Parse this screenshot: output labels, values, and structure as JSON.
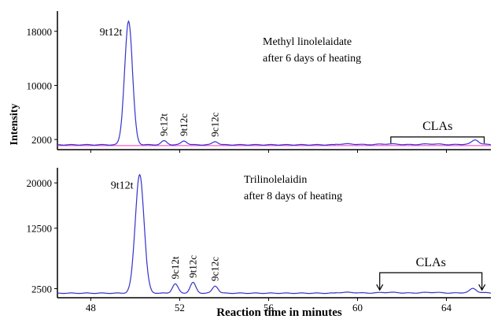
{
  "chart_data": {
    "type": "line",
    "xlabel": "Reaction time in minutes",
    "ylabel": "Intensity",
    "xlim": [
      46.5,
      66
    ],
    "x_ticks": [
      48,
      52,
      56,
      60,
      64
    ],
    "colors": {
      "trace": "#3333cc",
      "baseline": "#ff33cc",
      "axis": "#000000"
    },
    "panels": [
      {
        "title": "Methyl linolelaidate",
        "subtitle": "after 6 days of heating",
        "ylim": [
          500,
          21000
        ],
        "y_ticks": [
          2000,
          10000,
          18000
        ],
        "peaks": [
          {
            "label": "9t12t",
            "x": 49.7,
            "y": 19500
          },
          {
            "label": "9c12t",
            "x": 51.3,
            "y": 1800
          },
          {
            "label": "9t12c",
            "x": 52.2,
            "y": 1800
          },
          {
            "label": "9c12c",
            "x": 53.6,
            "y": 1700
          }
        ],
        "cla_bracket": {
          "label": "CLAs",
          "x_start": 61.5,
          "x_end": 65.7,
          "style": "bracket"
        }
      },
      {
        "title": "Trilinolelaidin",
        "subtitle": "after 8 days of heating",
        "ylim": [
          1000,
          22500
        ],
        "y_ticks": [
          2500,
          12500,
          20000
        ],
        "peaks": [
          {
            "label": "9t12t",
            "x": 50.2,
            "y": 21400
          },
          {
            "label": "9c12t",
            "x": 51.8,
            "y": 3300
          },
          {
            "label": "9t12c",
            "x": 52.6,
            "y": 3500
          },
          {
            "label": "9c12c",
            "x": 53.6,
            "y": 2950
          }
        ],
        "cla_bracket": {
          "label": "CLAs",
          "x_start": 61,
          "x_end": 65.6,
          "style": "arrows"
        }
      }
    ]
  }
}
